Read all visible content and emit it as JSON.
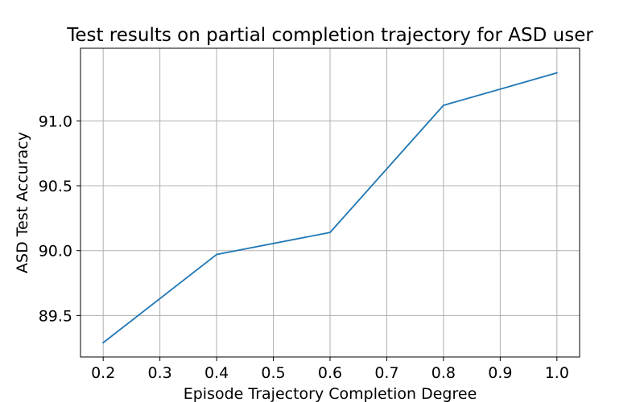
{
  "chart_data": {
    "type": "line",
    "title": "Test results on partial completion trajectory for ASD user",
    "xlabel": "Episode Trajectory Completion Degree",
    "ylabel": "ASD Test Accuracy",
    "x": [
      0.2,
      0.4,
      0.6,
      0.8,
      1.0
    ],
    "series": [
      {
        "values": [
          89.29,
          89.97,
          90.14,
          91.12,
          91.37
        ],
        "color": "#1f77b4"
      }
    ],
    "xlim": [
      0.16,
      1.04
    ],
    "ylim": [
      89.18,
      91.56
    ],
    "xticks": [
      0.2,
      0.3,
      0.4,
      0.5,
      0.6,
      0.7,
      0.8,
      0.9,
      1.0
    ],
    "xtick_labels": [
      "0.2",
      "0.3",
      "0.4",
      "0.5",
      "0.6",
      "0.7",
      "0.8",
      "0.9",
      "1.0"
    ],
    "yticks": [
      89.5,
      90.0,
      90.5,
      91.0
    ],
    "ytick_labels": [
      "89.5",
      "90.0",
      "90.5",
      "91.0"
    ],
    "grid": true,
    "legend": "none"
  }
}
